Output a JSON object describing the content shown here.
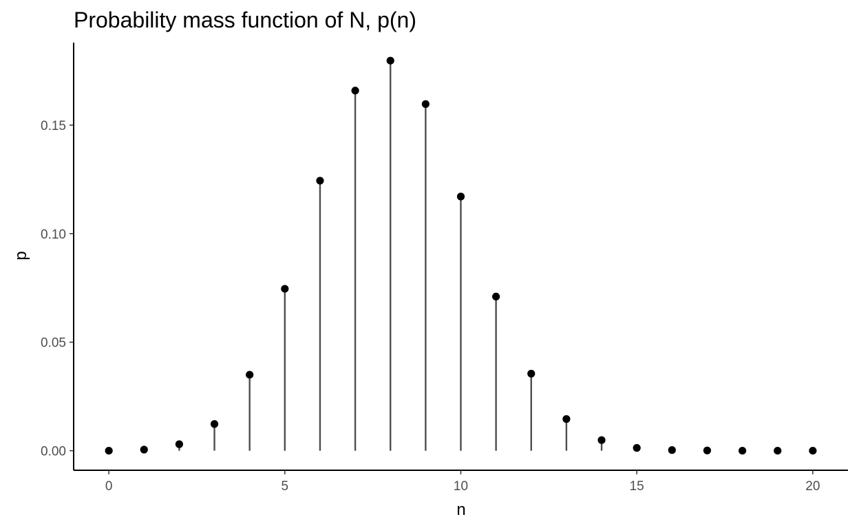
{
  "chart_data": {
    "type": "scatter",
    "geometry": "lollipop",
    "title": "Probability mass function of N, p(n)",
    "xlabel": "n",
    "ylabel": "p",
    "xlim": [
      -1,
      21
    ],
    "ylim": [
      -0.009,
      0.188
    ],
    "x_ticks": [
      0,
      5,
      10,
      15,
      20
    ],
    "x_tick_labels": [
      "0",
      "5",
      "10",
      "15",
      "20"
    ],
    "y_ticks": [
      0,
      0.05,
      0.1,
      0.15
    ],
    "y_tick_labels": [
      "0.00",
      "0.05",
      "0.10",
      "0.15"
    ],
    "grid": false,
    "legend": "none",
    "point_color": "#000000",
    "stem_color": "#4d4d4d",
    "x": [
      0,
      1,
      2,
      3,
      4,
      5,
      6,
      7,
      8,
      9,
      10,
      11,
      12,
      13,
      14,
      15,
      16,
      17,
      18,
      19,
      20
    ],
    "y": [
      0.0,
      0.0005,
      0.003,
      0.0123,
      0.035,
      0.0746,
      0.1244,
      0.1659,
      0.1797,
      0.1597,
      0.1171,
      0.071,
      0.0355,
      0.0146,
      0.0049,
      0.0013,
      0.0003,
      0.0001,
      0.0,
      0.0,
      0.0
    ]
  }
}
